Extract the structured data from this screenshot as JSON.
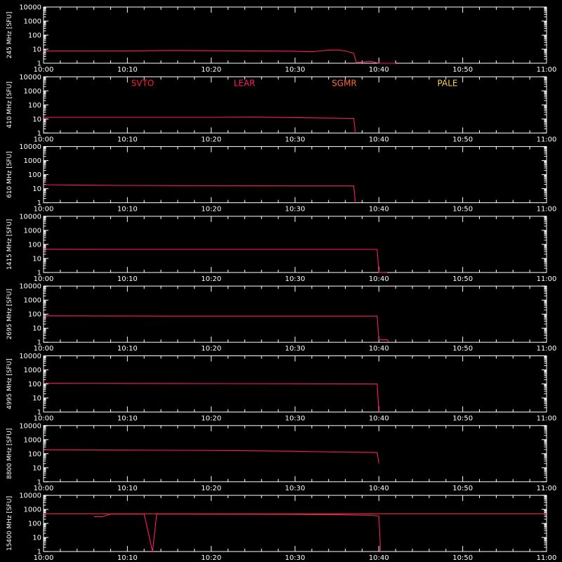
{
  "colors": {
    "background": "#000000",
    "axes": "#ffffff",
    "SVTO": "#ff1a2e",
    "LEAR": "#ff1a66",
    "SGMR": "#ff6a2a",
    "PALE": "#ffd23a"
  },
  "chart_data": {
    "type": "line",
    "xlim": [
      "10:00",
      "11:00"
    ],
    "x_tick_labels": [
      "10:00",
      "10:10",
      "10:20",
      "10:30",
      "10:40",
      "10:50",
      "11:00"
    ],
    "y_scale": "log",
    "ylim": [
      1,
      10000
    ],
    "y_tick_labels": [
      "1",
      "10",
      "100",
      "1000",
      "10000"
    ],
    "legend": [
      {
        "name": "SVTO",
        "color": "#ff1a2e"
      },
      {
        "name": "LEAR",
        "color": "#ff1a66"
      },
      {
        "name": "SGMR",
        "color": "#ff6a2a"
      },
      {
        "name": "PALE",
        "color": "#ffd23a"
      }
    ],
    "panels": [
      {
        "ylabel": "245 MHz [SFU]",
        "series": [
          {
            "station": "LEAR",
            "points": [
              [
                "10:00",
                7.5
              ],
              [
                "10:05",
                7.5
              ],
              [
                "10:10",
                7.6
              ],
              [
                "10:15",
                8.0
              ],
              [
                "10:20",
                7.8
              ],
              [
                "10:25",
                7.6
              ],
              [
                "10:30",
                7.2
              ],
              [
                "10:32",
                6.5
              ],
              [
                "10:33",
                7.5
              ],
              [
                "10:34",
                8.5
              ],
              [
                "10:35",
                8.8
              ],
              [
                "10:36",
                7.5
              ],
              [
                "10:37",
                5.0
              ],
              [
                "10:37.3",
                1.2
              ],
              [
                "10:38",
                1.2
              ],
              [
                "10:39",
                1.4
              ],
              [
                "10:40",
                0.9
              ],
              [
                "10:42",
                0.9
              ]
            ]
          }
        ]
      },
      {
        "ylabel": "410 MHz [SFU]",
        "series": [
          {
            "station": "LEAR",
            "points": [
              [
                "10:00",
                13
              ],
              [
                "10:10",
                13
              ],
              [
                "10:20",
                13
              ],
              [
                "10:25",
                13.5
              ],
              [
                "10:30",
                12.5
              ],
              [
                "10:34",
                11.5
              ],
              [
                "10:37",
                11
              ],
              [
                "10:37.2",
                1
              ]
            ]
          }
        ]
      },
      {
        "ylabel": "610 MHz [SFU]",
        "series": [
          {
            "station": "LEAR",
            "points": [
              [
                "10:00",
                19
              ],
              [
                "10:05",
                17.5
              ],
              [
                "10:10",
                17
              ],
              [
                "10:20",
                16.5
              ],
              [
                "10:30",
                16
              ],
              [
                "10:37",
                16
              ],
              [
                "10:37.2",
                1
              ]
            ]
          }
        ]
      },
      {
        "ylabel": "1415 MHz [SFU]",
        "series": [
          {
            "station": "LEAR",
            "points": [
              [
                "10:00",
                45
              ],
              [
                "10:10",
                44
              ],
              [
                "10:20",
                44
              ],
              [
                "10:30",
                44
              ],
              [
                "10:39.8",
                44
              ],
              [
                "10:40",
                1
              ],
              [
                "10:41",
                1
              ]
            ]
          }
        ]
      },
      {
        "ylabel": "2695 MHz [SFU]",
        "series": [
          {
            "station": "LEAR",
            "points": [
              [
                "10:00",
                75
              ],
              [
                "10:10",
                73
              ],
              [
                "10:20",
                72
              ],
              [
                "10:30",
                72
              ],
              [
                "10:39.8",
                72
              ],
              [
                "10:40",
                1.5
              ],
              [
                "10:41",
                1.5
              ],
              [
                "10:41.2",
                0.9
              ]
            ]
          }
        ]
      },
      {
        "ylabel": "4995 MHz [SFU]",
        "series": [
          {
            "station": "LEAR",
            "points": [
              [
                "10:00",
                110
              ],
              [
                "10:10",
                108
              ],
              [
                "10:20",
                106
              ],
              [
                "10:30",
                104
              ],
              [
                "10:39.8",
                100
              ],
              [
                "10:40",
                1
              ]
            ]
          }
        ]
      },
      {
        "ylabel": "8800 MHz [SFU]",
        "series": [
          {
            "station": "LEAR",
            "points": [
              [
                "10:00",
                190
              ],
              [
                "10:10",
                180
              ],
              [
                "10:20",
                170
              ],
              [
                "10:30",
                150
              ],
              [
                "10:35",
                130
              ],
              [
                "10:39.8",
                120
              ],
              [
                "10:40",
                20
              ]
            ]
          }
        ]
      },
      {
        "ylabel": "15400 MHz [SFU]",
        "series": [
          {
            "station": "SVTO",
            "points": [
              [
                "10:00",
                480
              ],
              [
                "10:20",
                480
              ],
              [
                "10:40",
                480
              ],
              [
                "11:00",
                480
              ]
            ]
          },
          {
            "station": "LEAR",
            "points": [
              [
                "10:06",
                300
              ],
              [
                "10:07",
                300
              ],
              [
                "10:08",
                470
              ],
              [
                "10:12",
                460
              ],
              [
                "10:13",
                1
              ],
              [
                "10:13.5",
                460
              ],
              [
                "10:20",
                450
              ],
              [
                "10:30",
                440
              ],
              [
                "10:35",
                420
              ],
              [
                "10:39",
                380
              ],
              [
                "10:40",
                340
              ],
              [
                "10:40.2",
                1
              ]
            ]
          }
        ]
      }
    ]
  }
}
